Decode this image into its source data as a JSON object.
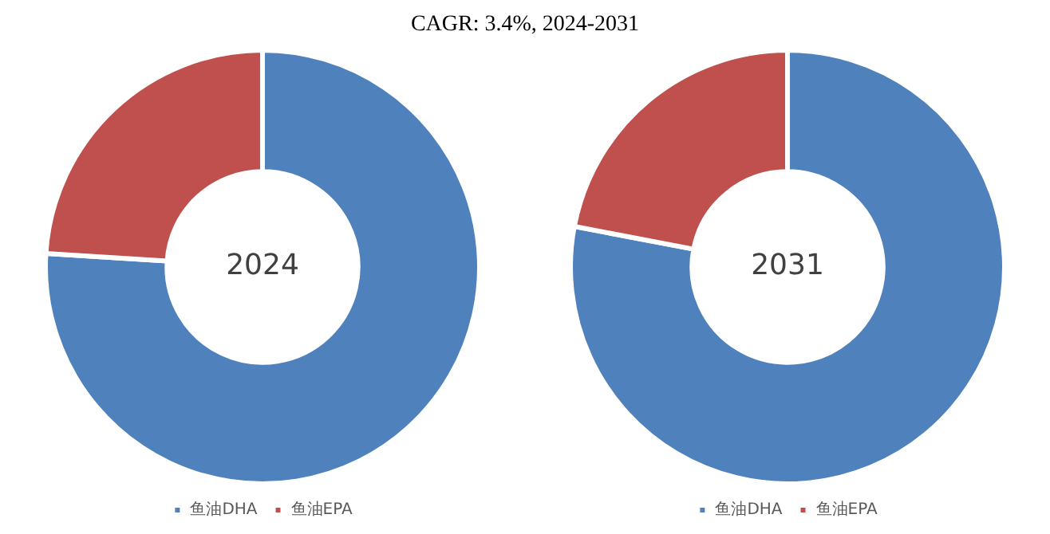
{
  "chart_data": [
    {
      "type": "donut",
      "title": "CAGR:    3.4%, 2024-2031",
      "categories": [
        "鱼油DHA",
        "鱼油EPA"
      ],
      "values": [
        76,
        24
      ],
      "colors": [
        "#4f81bd",
        "#c0504d"
      ],
      "annotations": [
        "2024"
      ],
      "legend": "bottom"
    },
    {
      "type": "donut",
      "categories": [
        "鱼油DHA",
        "鱼油EPA"
      ],
      "values": [
        78,
        22
      ],
      "colors": [
        "#4f81bd",
        "#c0504d"
      ],
      "annotations": [
        "2031"
      ],
      "legend": "bottom"
    }
  ]
}
